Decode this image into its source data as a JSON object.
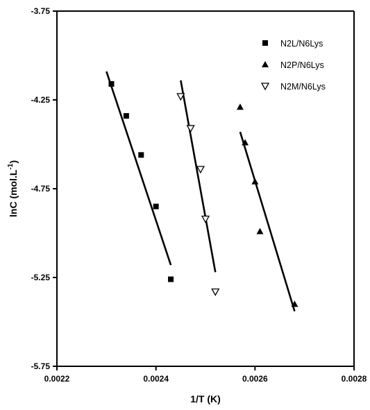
{
  "chart_data": {
    "type": "scatter",
    "title": "",
    "xlabel": "1/T (K)",
    "ylabel_main": "lnC (mol.L",
    "ylabel_sup": "-1",
    "ylabel_close": ")",
    "xlim": [
      0.0022,
      0.0028
    ],
    "ylim": [
      -5.75,
      -3.75
    ],
    "xticks": [
      0.0022,
      0.0024,
      0.0026,
      0.0028
    ],
    "xtick_labels": [
      "0.0022",
      "0.0024",
      "0.0026",
      "0.0028"
    ],
    "yticks": [
      -3.75,
      -4.25,
      -4.75,
      -5.25,
      -5.75
    ],
    "ytick_labels": [
      "-3.75",
      "-4.25",
      "-4.75",
      "-5.25",
      "-5.75"
    ],
    "grid": false,
    "legend_position": "top-right",
    "series": [
      {
        "name": "N2L/N6Lys",
        "marker": "square",
        "x": [
          0.00231,
          0.00234,
          0.00237,
          0.0024,
          0.00243
        ],
        "y": [
          -4.16,
          -4.34,
          -4.56,
          -4.85,
          -5.26
        ],
        "fit": {
          "x": [
            0.0023,
            0.00243
          ],
          "y": [
            -4.09,
            -5.18
          ]
        }
      },
      {
        "name": "N2P/N6Lys",
        "marker": "triangle-up",
        "x": [
          0.00257,
          0.00258,
          0.0026,
          0.00261,
          0.00268
        ],
        "y": [
          -4.29,
          -4.49,
          -4.71,
          -4.99,
          -5.4
        ],
        "fit": {
          "x": [
            0.00257,
            0.00268
          ],
          "y": [
            -4.43,
            -5.44
          ]
        }
      },
      {
        "name": "N2M/N6Lys",
        "marker": "triangle-down",
        "x": [
          0.00245,
          0.00247,
          0.00249,
          0.0025,
          0.00252
        ],
        "y": [
          -4.23,
          -4.41,
          -4.64,
          -4.92,
          -5.33
        ],
        "fit": {
          "x": [
            0.00245,
            0.00252
          ],
          "y": [
            -4.14,
            -5.22
          ]
        }
      }
    ]
  }
}
